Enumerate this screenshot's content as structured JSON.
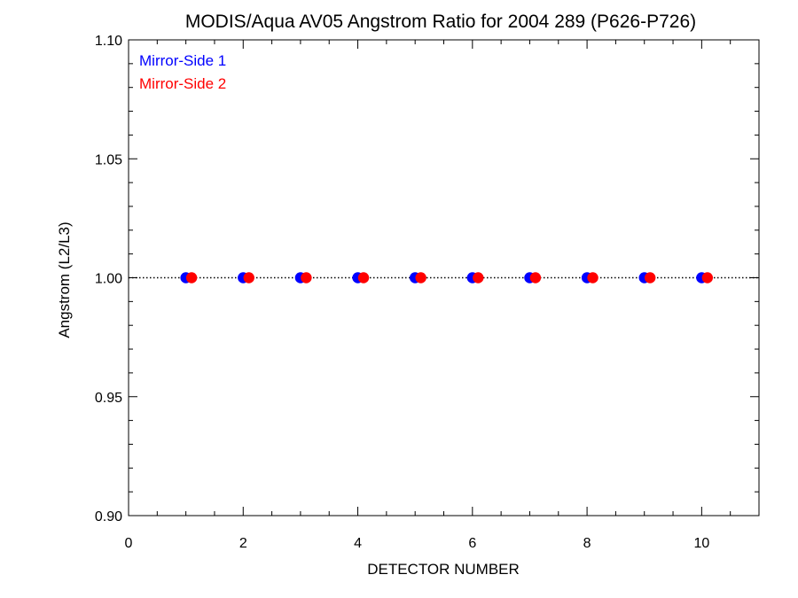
{
  "chart_data": {
    "type": "scatter",
    "title": "MODIS/Aqua AV05 Angstrom Ratio for 2004 289 (P626-P726)",
    "xlabel": "DETECTOR NUMBER",
    "ylabel": "Angstrom (L2/L3)",
    "xlim": [
      0,
      11
    ],
    "ylim": [
      0.9,
      1.1
    ],
    "xticks": [
      0,
      2,
      4,
      6,
      8,
      10
    ],
    "xtick_labels": [
      "0",
      "2",
      "4",
      "6",
      "8",
      "10"
    ],
    "yticks": [
      0.9,
      0.95,
      1.0,
      1.05,
      1.1
    ],
    "ytick_labels": [
      "0.90",
      "0.95",
      "1.00",
      "1.05",
      "1.10"
    ],
    "reference_line": {
      "y": 1.0,
      "style": "dotted",
      "color": "#000000"
    },
    "legend_placement": "top-left",
    "series": [
      {
        "name": "Mirror-Side 1",
        "color": "#0000ff",
        "x": [
          1,
          2,
          3,
          4,
          5,
          6,
          7,
          8,
          9,
          10
        ],
        "y": [
          1.0,
          1.0,
          1.0,
          1.0,
          1.0,
          1.0,
          1.0,
          1.0,
          1.0,
          1.0
        ]
      },
      {
        "name": "Mirror-Side 2",
        "color": "#ff0000",
        "x": [
          1.1,
          2.1,
          3.1,
          4.1,
          5.1,
          6.1,
          7.1,
          8.1,
          9.1,
          10.1
        ],
        "y": [
          1.0,
          1.0,
          1.0,
          1.0,
          1.0,
          1.0,
          1.0,
          1.0,
          1.0,
          1.0
        ]
      }
    ]
  }
}
